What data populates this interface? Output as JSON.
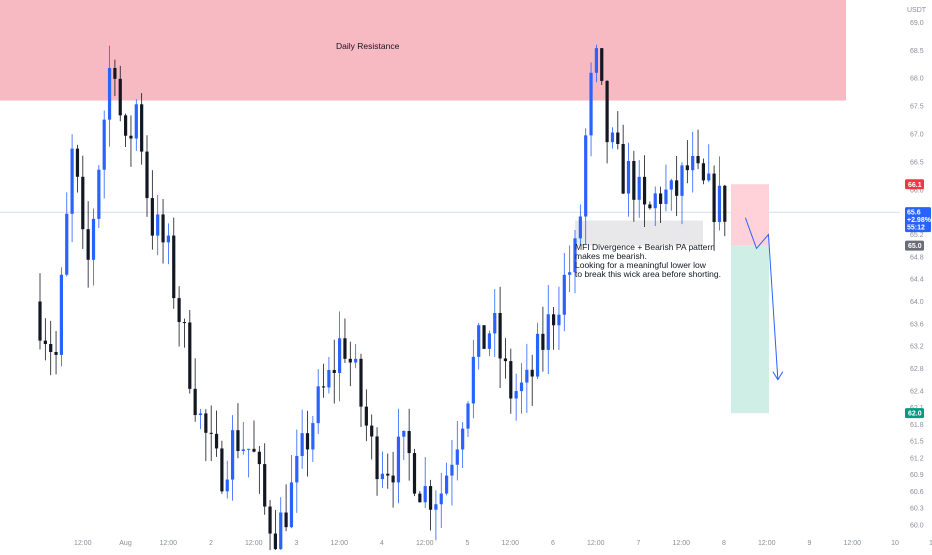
{
  "chart_data": {
    "type": "candlestick",
    "currency": "USDT",
    "ylim": [
      59.8,
      69.4
    ],
    "y_ticks": [
      60.0,
      60.3,
      60.6,
      60.9,
      61.2,
      61.5,
      61.8,
      62.1,
      62.4,
      62.8,
      63.2,
      63.6,
      64.0,
      64.4,
      64.8,
      65.2,
      65.6,
      66.0,
      66.5,
      67.0,
      67.5,
      68.0,
      68.5,
      69.0
    ],
    "y_tick_labels": [
      "60.0",
      "60.3",
      "60.6",
      "60.9",
      "61.2",
      "61.5",
      "61.8",
      "62.1",
      "62.4",
      "62.8",
      "63.2",
      "63.6",
      "64.0",
      "64.4",
      "64.8",
      "65.2",
      "65.6",
      "66.0",
      "66.5",
      "67.0",
      "67.5",
      "68.0",
      "68.5",
      "69.0"
    ],
    "x_ticks": [
      {
        "label": "12:00",
        "pos": 0.5
      },
      {
        "label": "Aug",
        "pos": 1.0
      },
      {
        "label": "12:00",
        "pos": 1.5
      },
      {
        "label": "2",
        "pos": 2.0
      },
      {
        "label": "12:00",
        "pos": 2.5
      },
      {
        "label": "3",
        "pos": 3.0
      },
      {
        "label": "12:00",
        "pos": 3.5
      },
      {
        "label": "4",
        "pos": 4.0
      },
      {
        "label": "12:00",
        "pos": 4.5
      },
      {
        "label": "5",
        "pos": 5.0
      },
      {
        "label": "12:00",
        "pos": 5.5
      },
      {
        "label": "6",
        "pos": 6.0
      },
      {
        "label": "12:00",
        "pos": 6.5
      },
      {
        "label": "7",
        "pos": 7.0
      },
      {
        "label": "12:00",
        "pos": 7.5
      },
      {
        "label": "8",
        "pos": 8.0
      },
      {
        "label": "12:00",
        "pos": 8.5
      },
      {
        "label": "9",
        "pos": 9.0
      },
      {
        "label": "12:00",
        "pos": 9.5
      },
      {
        "label": "10",
        "pos": 10.0
      },
      {
        "label": "12:00",
        "pos": 10.5
      }
    ],
    "ohlc_close_path": [
      [
        0.0,
        64.0
      ],
      [
        0.25,
        63.0
      ],
      [
        0.45,
        66.8
      ],
      [
        0.6,
        64.3
      ],
      [
        0.75,
        66.5
      ],
      [
        0.92,
        68.7
      ],
      [
        1.05,
        66.5
      ],
      [
        1.2,
        67.6
      ],
      [
        1.35,
        65.5
      ],
      [
        1.55,
        64.9
      ],
      [
        1.75,
        63.3
      ],
      [
        1.95,
        61.8
      ],
      [
        2.15,
        60.9
      ],
      [
        2.35,
        61.6
      ],
      [
        2.55,
        61.3
      ],
      [
        2.7,
        60.2
      ],
      [
        2.85,
        59.9
      ],
      [
        3.05,
        60.8
      ],
      [
        3.25,
        61.9
      ],
      [
        3.45,
        62.6
      ],
      [
        3.6,
        63.4
      ],
      [
        3.75,
        62.6
      ],
      [
        3.95,
        61.3
      ],
      [
        4.15,
        61.1
      ],
      [
        4.35,
        61.3
      ],
      [
        4.55,
        60.6
      ],
      [
        4.75,
        60.6
      ],
      [
        4.95,
        61.7
      ],
      [
        5.15,
        63.0
      ],
      [
        5.35,
        63.6
      ],
      [
        5.55,
        62.4
      ],
      [
        5.75,
        62.4
      ],
      [
        5.95,
        63.3
      ],
      [
        6.15,
        64.2
      ],
      [
        6.35,
        64.9
      ],
      [
        6.45,
        67.0
      ],
      [
        6.55,
        68.4
      ],
      [
        6.7,
        66.9
      ],
      [
        6.85,
        66.3
      ],
      [
        7.0,
        66.2
      ],
      [
        7.15,
        65.4
      ],
      [
        7.3,
        66.0
      ],
      [
        7.45,
        65.8
      ],
      [
        7.65,
        66.4
      ],
      [
        7.8,
        66.0
      ],
      [
        7.95,
        65.8
      ],
      [
        8.05,
        65.7
      ]
    ],
    "zones": [
      {
        "label": "Daily Resistance",
        "y_bottom": 67.6,
        "y_top": 69.4,
        "color": "#f7b9c2"
      },
      {
        "label": "wick area",
        "y_bottom": 65.0,
        "y_top": 65.45,
        "color": "#e8e8ea"
      }
    ],
    "position": {
      "type": "short",
      "entry": 65.0,
      "stop": 66.1,
      "target": 62.0,
      "stop_color": "#ffd1d8",
      "target_color": "#cfeee6"
    },
    "projection_path": [
      [
        8.25,
        65.5
      ],
      [
        8.38,
        64.95
      ],
      [
        8.52,
        65.2
      ],
      [
        8.63,
        62.6
      ]
    ],
    "current_price": 65.6,
    "colors": {
      "up": "#2962ff",
      "down": "#131722",
      "resistance": "#f7b9c2",
      "stop_tag": "#f23645",
      "entry_tag": "#6a6d78",
      "target_tag": "#089981",
      "price_tag": "#2962ff",
      "projection": "#2962ff"
    }
  },
  "labels": {
    "resistance": "Daily Resistance",
    "annotation_lines": [
      "MFI Divergence + Bearish PA pattern",
      "makes me bearish.",
      "Looking for a meaningful lower low",
      "to break this wick area before shorting."
    ],
    "axis_unit": "USDT",
    "stop_tag": "66.1",
    "entry_tag": "65.0",
    "target_tag": "62.0",
    "price_tag": "65.6",
    "price_change_tag": "+2.98%",
    "countdown_tag": "55:12"
  }
}
